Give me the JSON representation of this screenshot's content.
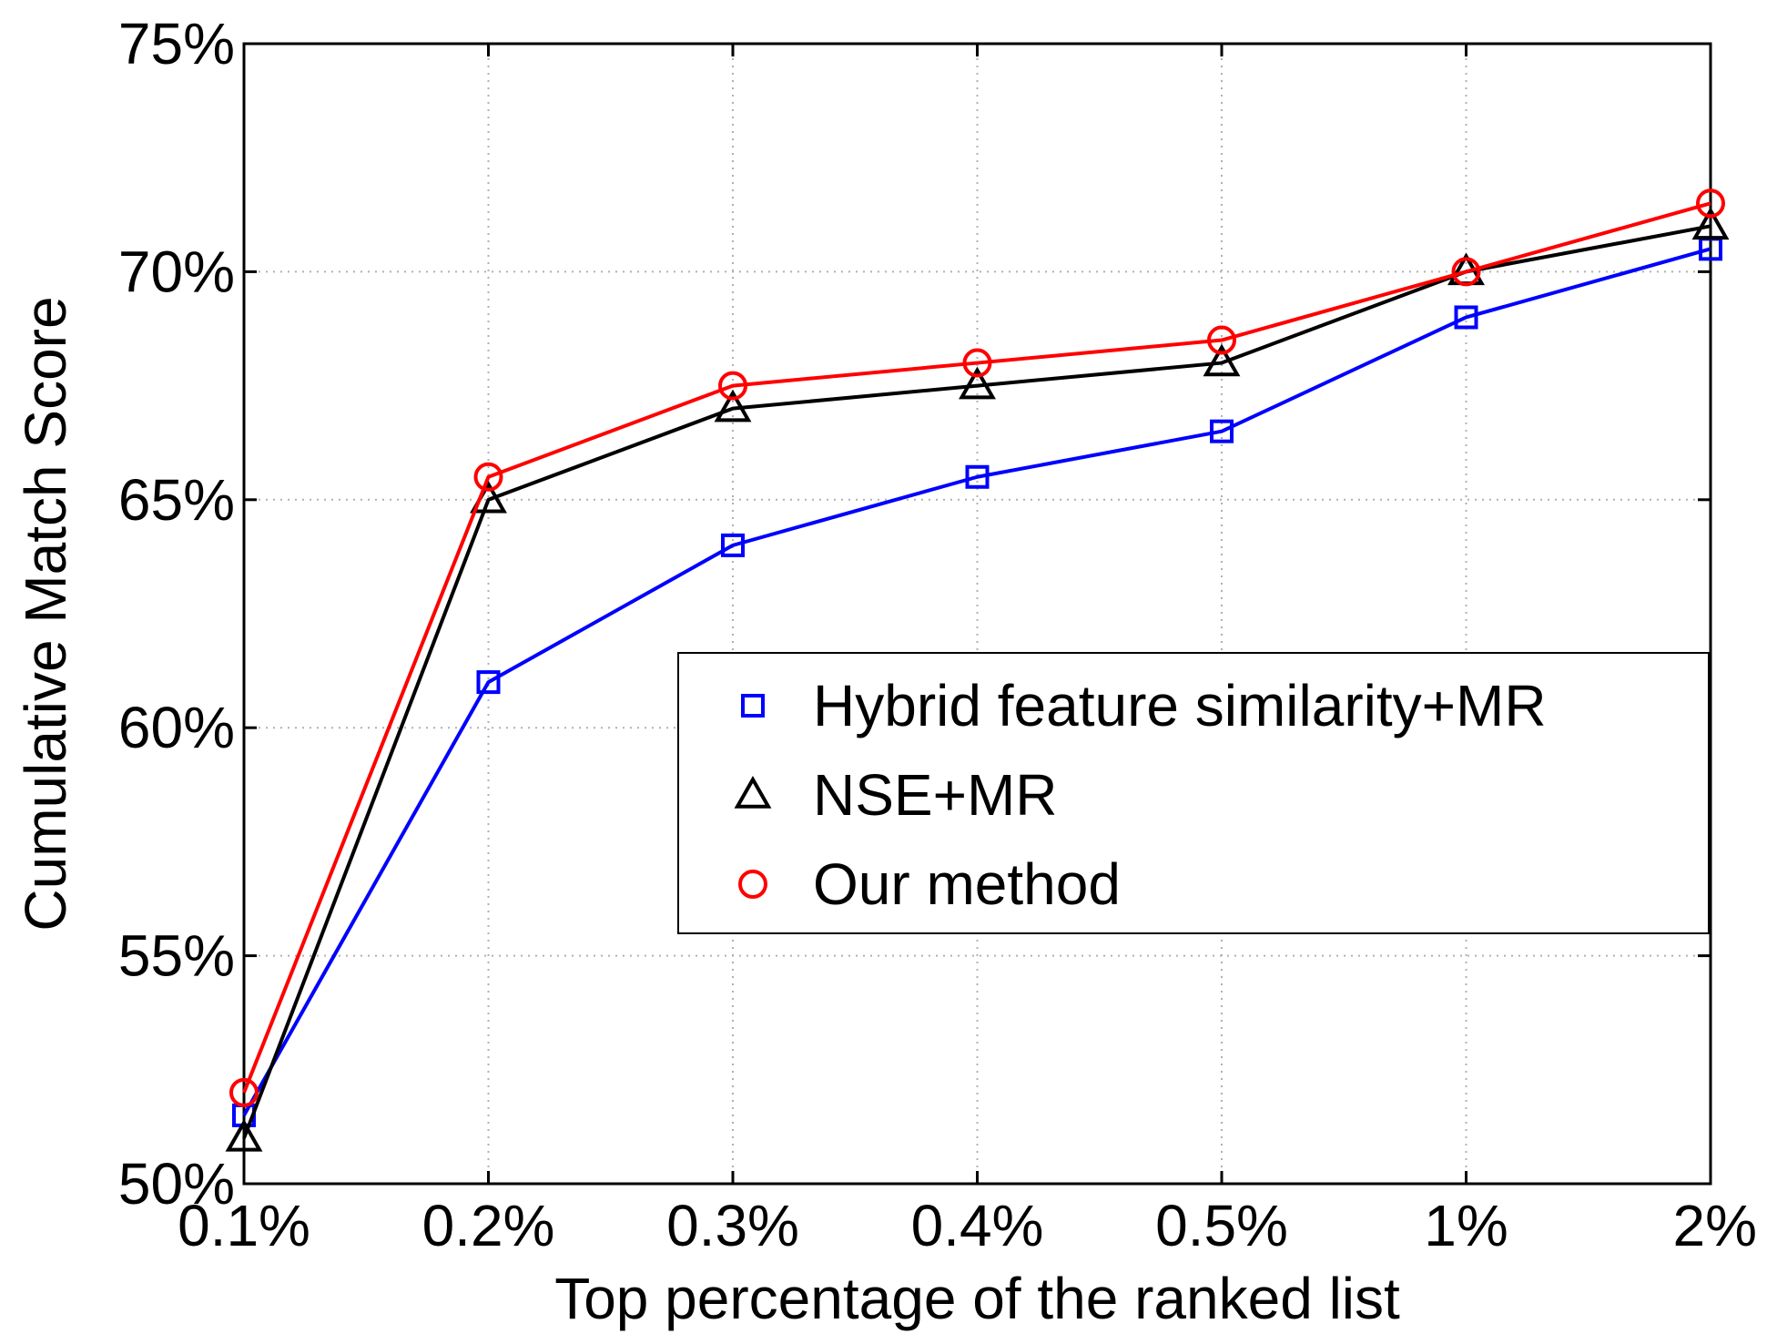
{
  "chart_data": {
    "type": "line",
    "title": "",
    "xlabel": "Top percentage of the ranked list",
    "ylabel": "Cumulative Match Score",
    "categories": [
      "0.1%",
      "0.2%",
      "0.3%",
      "0.4%",
      "0.5%",
      "1%",
      "2%"
    ],
    "ylim": [
      50,
      75
    ],
    "yticks": [
      50,
      55,
      60,
      65,
      70,
      75
    ],
    "ytick_labels": [
      "50%",
      "55%",
      "60%",
      "65%",
      "70%",
      "75%"
    ],
    "grid": true,
    "legend_position": "center-right",
    "series": [
      {
        "name": "Hybrid feature similarity+MR",
        "color": "#0000ff",
        "marker": "square",
        "values": [
          51.5,
          61.0,
          64.0,
          65.5,
          66.5,
          69.0,
          70.5
        ]
      },
      {
        "name": "NSE+MR",
        "color": "#000000",
        "marker": "triangle",
        "values": [
          51.0,
          65.0,
          67.0,
          67.5,
          68.0,
          70.0,
          71.0
        ]
      },
      {
        "name": "Our method",
        "color": "#ff0000",
        "marker": "circle",
        "values": [
          52.0,
          65.5,
          67.5,
          68.0,
          68.5,
          70.0,
          71.5
        ]
      }
    ]
  }
}
